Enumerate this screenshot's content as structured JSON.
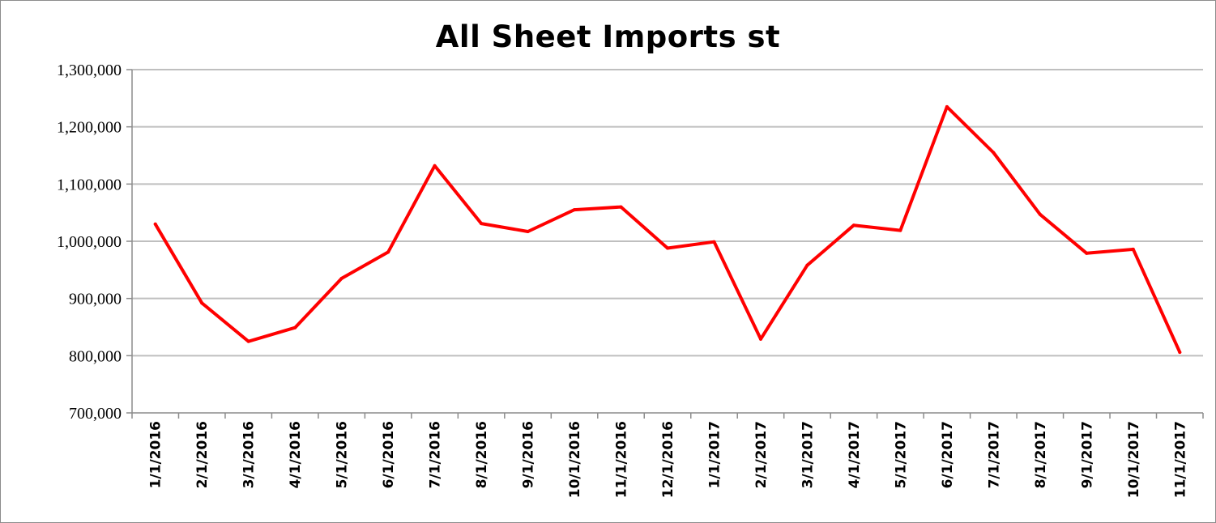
{
  "chart_data": {
    "type": "line",
    "title": "All Sheet Imports st",
    "xlabel": "",
    "ylabel": "",
    "ylim": [
      700000,
      1300000
    ],
    "yticks": [
      "700,000",
      "800,000",
      "900,000",
      "1,000,000",
      "1,100,000",
      "1,200,000",
      "1,300,000"
    ],
    "ytick_values": [
      700000,
      800000,
      900000,
      1000000,
      1100000,
      1200000,
      1300000
    ],
    "grid": "horizontal",
    "legend": "none",
    "series_color": "#ff0000",
    "grid_color": "#bfbfbf",
    "categories": [
      "1/1/2016",
      "2/1/2016",
      "3/1/2016",
      "4/1/2016",
      "5/1/2016",
      "6/1/2016",
      "7/1/2016",
      "8/1/2016",
      "9/1/2016",
      "10/1/2016",
      "11/1/2016",
      "12/1/2016",
      "1/1/2017",
      "2/1/2017",
      "3/1/2017",
      "4/1/2017",
      "5/1/2017",
      "6/1/2017",
      "7/1/2017",
      "8/1/2017",
      "9/1/2017",
      "10/1/2017",
      "11/1/2017"
    ],
    "series": [
      {
        "values": [
          1030000,
          892000,
          825000,
          849000,
          935000,
          981000,
          1132000,
          1031000,
          1017000,
          1055000,
          1060000,
          988000,
          999000,
          829000,
          958000,
          1028000,
          1019000,
          1235000,
          1155000,
          1047000,
          979000,
          986000,
          806000
        ]
      }
    ]
  }
}
